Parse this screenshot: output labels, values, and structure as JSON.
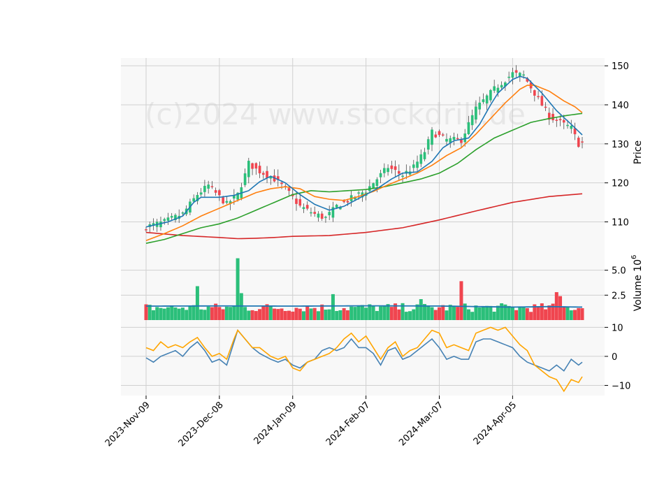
{
  "chart_data": {
    "type": "candlestick",
    "watermark": "(c)2024 www.stockdrill.de",
    "colors": {
      "up": "#2bbf7a",
      "down": "#f0454f",
      "ma_short": "#1f77b4",
      "ma_medium": "#ff7f0e",
      "ma_long": "#2ca02c",
      "ma_longest": "#d62728",
      "volume_avg": "#1f77b4",
      "osc_1": "#4682b4",
      "osc_2": "#ffa500",
      "panel_bg": "#f8f8f8",
      "grid": "#d0d0d0"
    },
    "x_tick_labels": [
      "2023-Nov-09",
      "2023-Dec-08",
      "2024-Jan-09",
      "2024-Feb-07",
      "2024-Mar-07",
      "2024-Apr-05"
    ],
    "x_tick_index": [
      0,
      20,
      40,
      60,
      80,
      100
    ],
    "n_bars": 120,
    "price_panel": {
      "ylabel": "Price",
      "ylim": [
        104,
        152
      ],
      "yticks": [
        110,
        120,
        130,
        140,
        150
      ],
      "close_anchors": [
        [
          0,
          108.7
        ],
        [
          5,
          110
        ],
        [
          10,
          112
        ],
        [
          14,
          117
        ],
        [
          17,
          119.3
        ],
        [
          22,
          114.5
        ],
        [
          25,
          117
        ],
        [
          27,
          122
        ],
        [
          28,
          125
        ],
        [
          30,
          123.5
        ],
        [
          35,
          121
        ],
        [
          38,
          118.5
        ],
        [
          42,
          114
        ],
        [
          46,
          112
        ],
        [
          49,
          111
        ],
        [
          52,
          114
        ],
        [
          56,
          116
        ],
        [
          60,
          118
        ],
        [
          63,
          121
        ],
        [
          66,
          124
        ],
        [
          70,
          122
        ],
        [
          73,
          124
        ],
        [
          76,
          128
        ],
        [
          78,
          133
        ],
        [
          82,
          131
        ],
        [
          86,
          131
        ],
        [
          90,
          139
        ],
        [
          95,
          144
        ],
        [
          100,
          148
        ],
        [
          103,
          147.5
        ],
        [
          106,
          143
        ],
        [
          110,
          137
        ],
        [
          114,
          135
        ],
        [
          116,
          134
        ],
        [
          118,
          130
        ],
        [
          119,
          130.3
        ]
      ],
      "ma_short_anchors": [
        [
          0,
          108.7
        ],
        [
          6,
          110
        ],
        [
          10,
          111.5
        ],
        [
          13,
          115
        ],
        [
          15,
          116.3
        ],
        [
          20,
          116.3
        ],
        [
          24,
          116.8
        ],
        [
          28,
          118
        ],
        [
          31,
          120.3
        ],
        [
          34,
          121.7
        ],
        [
          38,
          120
        ],
        [
          42,
          117
        ],
        [
          46,
          114.5
        ],
        [
          50,
          113
        ],
        [
          54,
          114
        ],
        [
          58,
          116
        ],
        [
          63,
          118.5
        ],
        [
          67,
          121
        ],
        [
          70,
          122.5
        ],
        [
          74,
          122.8
        ],
        [
          78,
          125.5
        ],
        [
          81,
          129
        ],
        [
          84,
          130.8
        ],
        [
          88,
          131.5
        ],
        [
          91,
          135
        ],
        [
          94,
          140
        ],
        [
          96,
          143
        ],
        [
          100,
          146.5
        ],
        [
          102,
          147.3
        ],
        [
          104,
          146.8
        ],
        [
          108,
          143
        ],
        [
          112,
          138.5
        ],
        [
          116,
          135
        ],
        [
          119,
          132.3
        ]
      ],
      "ma_medium_anchors": [
        [
          0,
          105.2
        ],
        [
          5,
          107
        ],
        [
          10,
          109
        ],
        [
          15,
          111.5
        ],
        [
          20,
          113.5
        ],
        [
          25,
          115.5
        ],
        [
          30,
          117.5
        ],
        [
          34,
          118.5
        ],
        [
          38,
          119
        ],
        [
          42,
          118.5
        ],
        [
          46,
          116.5
        ],
        [
          50,
          115.8
        ],
        [
          54,
          115.5
        ],
        [
          58,
          116.5
        ],
        [
          62,
          117.8
        ],
        [
          66,
          119.5
        ],
        [
          70,
          121
        ],
        [
          74,
          122.5
        ],
        [
          78,
          124.5
        ],
        [
          82,
          127
        ],
        [
          86,
          129
        ],
        [
          90,
          132.5
        ],
        [
          94,
          136.5
        ],
        [
          98,
          140.5
        ],
        [
          102,
          144
        ],
        [
          104,
          145
        ],
        [
          106,
          145
        ],
        [
          110,
          143.5
        ],
        [
          114,
          141
        ],
        [
          117,
          139.5
        ],
        [
          119,
          138
        ]
      ],
      "ma_long_anchors": [
        [
          0,
          104.5
        ],
        [
          5,
          105.5
        ],
        [
          10,
          107
        ],
        [
          15,
          108.5
        ],
        [
          20,
          109.5
        ],
        [
          25,
          111
        ],
        [
          30,
          113
        ],
        [
          35,
          115
        ],
        [
          40,
          117
        ],
        [
          45,
          118
        ],
        [
          50,
          117.7
        ],
        [
          55,
          118
        ],
        [
          60,
          118.3
        ],
        [
          65,
          119
        ],
        [
          70,
          120
        ],
        [
          75,
          121
        ],
        [
          80,
          122.5
        ],
        [
          85,
          125
        ],
        [
          90,
          128.5
        ],
        [
          95,
          131.5
        ],
        [
          100,
          133.5
        ],
        [
          105,
          135.5
        ],
        [
          110,
          136.5
        ],
        [
          115,
          137.3
        ],
        [
          119,
          137.8
        ]
      ],
      "ma_longest_anchors": [
        [
          0,
          107.3
        ],
        [
          10,
          106.5
        ],
        [
          20,
          106
        ],
        [
          25,
          105.7
        ],
        [
          30,
          105.8
        ],
        [
          35,
          106
        ],
        [
          40,
          106.3
        ],
        [
          50,
          106.5
        ],
        [
          60,
          107.3
        ],
        [
          70,
          108.5
        ],
        [
          80,
          110.5
        ],
        [
          90,
          112.8
        ],
        [
          100,
          115
        ],
        [
          110,
          116.5
        ],
        [
          119,
          117.2
        ]
      ]
    },
    "volume_panel": {
      "ylabel": "Volume  10^6",
      "ylim": [
        0,
        7.5
      ],
      "yticks": [
        2.5,
        5.0
      ],
      "avg_anchors": [
        [
          0,
          1.4
        ],
        [
          20,
          1.42
        ],
        [
          40,
          1.4
        ],
        [
          60,
          1.43
        ],
        [
          80,
          1.41
        ],
        [
          100,
          1.3
        ],
        [
          110,
          1.35
        ],
        [
          119,
          1.3
        ]
      ],
      "spikes": [
        [
          14,
          3.4
        ],
        [
          25,
          6.2
        ],
        [
          26,
          2.7
        ],
        [
          51,
          2.6
        ],
        [
          75,
          2.1
        ],
        [
          86,
          3.9
        ],
        [
          112,
          2.8
        ],
        [
          113,
          2.4
        ]
      ]
    },
    "oscillator_panel": {
      "ylim": [
        -13.5,
        12.5
      ],
      "yticks": [
        -10,
        0,
        10
      ],
      "line1_anchors": [
        [
          0,
          -0.5
        ],
        [
          2,
          -2
        ],
        [
          4,
          0
        ],
        [
          6,
          1
        ],
        [
          8,
          2
        ],
        [
          10,
          0
        ],
        [
          12,
          3
        ],
        [
          14,
          5
        ],
        [
          16,
          2
        ],
        [
          18,
          -2
        ],
        [
          20,
          -1
        ],
        [
          22,
          -3
        ],
        [
          24,
          5
        ],
        [
          25,
          9
        ],
        [
          27,
          6
        ],
        [
          29,
          3
        ],
        [
          31,
          1
        ],
        [
          34,
          -1
        ],
        [
          36,
          -2
        ],
        [
          38,
          -1
        ],
        [
          40,
          -3
        ],
        [
          42,
          -4
        ],
        [
          44,
          -2
        ],
        [
          46,
          -1
        ],
        [
          48,
          2
        ],
        [
          50,
          3
        ],
        [
          52,
          2
        ],
        [
          54,
          3
        ],
        [
          56,
          6
        ],
        [
          58,
          3
        ],
        [
          60,
          3
        ],
        [
          62,
          1
        ],
        [
          64,
          -3
        ],
        [
          66,
          2
        ],
        [
          68,
          3
        ],
        [
          70,
          -1
        ],
        [
          72,
          0
        ],
        [
          74,
          2
        ],
        [
          76,
          4
        ],
        [
          78,
          6
        ],
        [
          80,
          3
        ],
        [
          82,
          -1
        ],
        [
          84,
          0
        ],
        [
          86,
          -1
        ],
        [
          88,
          -1
        ],
        [
          90,
          5
        ],
        [
          92,
          6
        ],
        [
          94,
          6
        ],
        [
          96,
          5
        ],
        [
          98,
          4
        ],
        [
          100,
          3
        ],
        [
          102,
          0
        ],
        [
          104,
          -2
        ],
        [
          106,
          -3
        ],
        [
          108,
          -4
        ],
        [
          110,
          -5
        ],
        [
          112,
          -3
        ],
        [
          114,
          -5
        ],
        [
          116,
          -1
        ],
        [
          118,
          -3
        ],
        [
          119,
          -2
        ]
      ],
      "line2_anchors": [
        [
          0,
          3
        ],
        [
          2,
          2
        ],
        [
          4,
          5
        ],
        [
          6,
          3
        ],
        [
          8,
          4
        ],
        [
          10,
          3
        ],
        [
          12,
          5
        ],
        [
          14,
          6.5
        ],
        [
          16,
          3
        ],
        [
          18,
          0
        ],
        [
          20,
          1
        ],
        [
          22,
          -1
        ],
        [
          24,
          6
        ],
        [
          25,
          9
        ],
        [
          27,
          6
        ],
        [
          29,
          3
        ],
        [
          31,
          3
        ],
        [
          34,
          0
        ],
        [
          36,
          -1
        ],
        [
          38,
          0
        ],
        [
          40,
          -4
        ],
        [
          42,
          -5
        ],
        [
          44,
          -2
        ],
        [
          46,
          -1
        ],
        [
          48,
          0
        ],
        [
          50,
          1
        ],
        [
          52,
          3
        ],
        [
          54,
          6
        ],
        [
          56,
          8
        ],
        [
          58,
          5
        ],
        [
          60,
          7
        ],
        [
          62,
          3
        ],
        [
          64,
          -1
        ],
        [
          66,
          3
        ],
        [
          68,
          5
        ],
        [
          70,
          0
        ],
        [
          72,
          2
        ],
        [
          74,
          3
        ],
        [
          76,
          6
        ],
        [
          78,
          9
        ],
        [
          80,
          8
        ],
        [
          82,
          3
        ],
        [
          84,
          4
        ],
        [
          86,
          3
        ],
        [
          88,
          2
        ],
        [
          90,
          8
        ],
        [
          92,
          9
        ],
        [
          94,
          10
        ],
        [
          96,
          9
        ],
        [
          98,
          10
        ],
        [
          100,
          7
        ],
        [
          102,
          4
        ],
        [
          104,
          2
        ],
        [
          106,
          -3
        ],
        [
          108,
          -5
        ],
        [
          110,
          -7
        ],
        [
          112,
          -8
        ],
        [
          114,
          -12
        ],
        [
          116,
          -8
        ],
        [
          118,
          -9
        ],
        [
          119,
          -7
        ]
      ]
    }
  }
}
